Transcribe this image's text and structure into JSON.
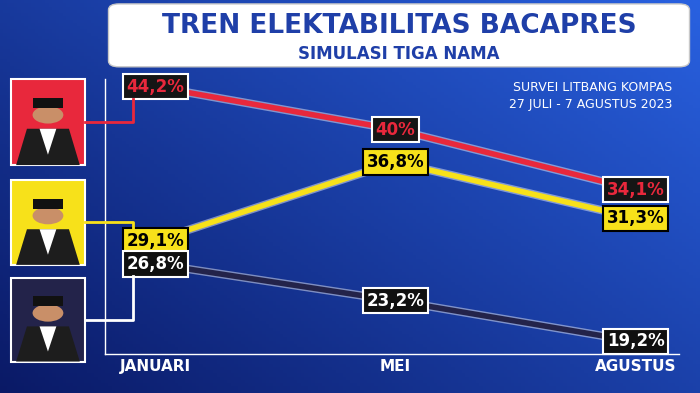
{
  "chart_data": {
    "type": "line",
    "title": "TREN ELEKTABILITAS BACAPRES",
    "subtitle": "SIMULASI TIGA NAMA",
    "annotation": "SURVEI LITBANG KOMPAS\n27 JULI - 7 AGUSTUS 2023",
    "categories": [
      "JANUARI",
      "MEI",
      "AGUSTUS"
    ],
    "series": [
      {
        "color": "#e8283c",
        "values": [
          44.2,
          40,
          34.1
        ],
        "value_labels": [
          "44,2%",
          "40%",
          "34,1%"
        ]
      },
      {
        "color": "#f7e11a",
        "values": [
          29.1,
          36.8,
          31.3
        ],
        "value_labels": [
          "29,1%",
          "36,8%",
          "31,3%"
        ]
      },
      {
        "color": "#23234a",
        "values": [
          26.8,
          23.2,
          19.2
        ],
        "value_labels": [
          "26,8%",
          "23,2%",
          "19,2%"
        ]
      }
    ],
    "ylim": [
      18,
      45
    ],
    "yticks": [],
    "grid": false,
    "data_labels": true,
    "tick_labels": "x"
  }
}
